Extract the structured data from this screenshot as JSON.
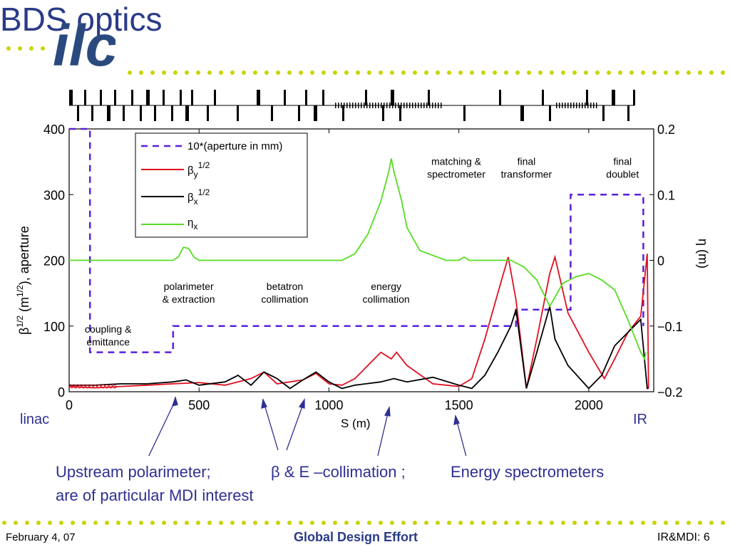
{
  "slide": {
    "title": "BDS optics",
    "logo_text": "ilc",
    "footer_left": "February 4, 07",
    "footer_center": "Global Design Effort",
    "footer_right": "IR&MDI: 6",
    "label_linac": "linac",
    "label_ir": "IR",
    "callout_1_line1": "Upstream polarimeter;",
    "callout_1_line2": "are of particular MDI interest",
    "callout_2": "β & E –collimation ;",
    "callout_3": "Energy spectrometers",
    "colors": {
      "title": "#2a3b87",
      "callout": "#2f3092",
      "dots": "#c8d400"
    }
  },
  "chart_data": {
    "type": "line",
    "xlabel": "S (m)",
    "ylabel": "β1/2 (m1/2), aperture",
    "y2label": "η (m)",
    "xlim": [
      0,
      2250
    ],
    "ylim": [
      0,
      400
    ],
    "y2lim": [
      -0.2,
      0.2
    ],
    "xticks": [
      "0",
      "500",
      "1000",
      "1500",
      "2000"
    ],
    "yticks": [
      "0",
      "100",
      "200",
      "300",
      "400"
    ],
    "y2ticks": [
      "−0.2",
      "−0.1",
      "0",
      "0.1",
      "0.2"
    ],
    "legend": {
      "placement": "top-left",
      "entries": [
        "10*(aperture in mm)",
        "βy1/2",
        "βx1/2",
        "ηx"
      ]
    },
    "annotations": [
      {
        "text": "coupling &\nemittance",
        "x": 150,
        "y": 90
      },
      {
        "text": "polarimeter\n& extraction",
        "x": 460,
        "y": 155
      },
      {
        "text": "betatron\ncollimation",
        "x": 830,
        "y": 155
      },
      {
        "text": "energy\ncollimation",
        "x": 1220,
        "y": 155
      },
      {
        "text": "matching &\nspectrometer",
        "x": 1490,
        "y": 345
      },
      {
        "text": "final\ntransformer",
        "x": 1760,
        "y": 345
      },
      {
        "text": "final\ndoublet",
        "x": 2130,
        "y": 345
      }
    ],
    "series": [
      {
        "name": "10*(aperture in mm)",
        "color": "#5a1fdc",
        "dash": true,
        "x": [
          0,
          80,
          80,
          400,
          400,
          1720,
          1720,
          1930,
          1930,
          2210,
          2210
        ],
        "y": [
          400,
          400,
          60,
          60,
          100,
          100,
          125,
          125,
          300,
          300,
          100
        ]
      },
      {
        "name": "βy1/2",
        "color": "#e01020",
        "x": [
          0,
          100,
          200,
          300,
          400,
          500,
          600,
          700,
          750,
          800,
          900,
          950,
          1000,
          1050,
          1100,
          1200,
          1240,
          1260,
          1300,
          1400,
          1500,
          1550,
          1600,
          1650,
          1690,
          1720,
          1760,
          1800,
          1850,
          1870,
          1920,
          2000,
          2060,
          2100,
          2150,
          2200,
          2225,
          2230
        ],
        "y": [
          8,
          6,
          8,
          10,
          12,
          14,
          10,
          20,
          30,
          12,
          18,
          28,
          12,
          10,
          20,
          60,
          50,
          60,
          40,
          12,
          8,
          20,
          80,
          150,
          205,
          140,
          5,
          80,
          180,
          205,
          120,
          60,
          20,
          50,
          90,
          115,
          210,
          5
        ]
      },
      {
        "name": "βx1/2",
        "color": "#000000",
        "x": [
          0,
          100,
          200,
          300,
          400,
          450,
          500,
          600,
          650,
          700,
          750,
          800,
          850,
          900,
          950,
          1000,
          1050,
          1100,
          1200,
          1250,
          1300,
          1400,
          1500,
          1550,
          1600,
          1650,
          1700,
          1720,
          1760,
          1800,
          1850,
          1870,
          1920,
          2000,
          2050,
          2100,
          2150,
          2200,
          2225,
          2230
        ],
        "y": [
          10,
          10,
          12,
          12,
          15,
          18,
          10,
          15,
          25,
          10,
          30,
          20,
          5,
          18,
          30,
          15,
          5,
          10,
          15,
          20,
          15,
          22,
          10,
          5,
          25,
          60,
          100,
          125,
          5,
          60,
          130,
          80,
          40,
          5,
          25,
          70,
          90,
          110,
          5,
          5
        ]
      },
      {
        "name": "ηx",
        "color": "#55dd22",
        "x": [
          0,
          400,
          420,
          440,
          460,
          480,
          500,
          1050,
          1100,
          1150,
          1200,
          1230,
          1240,
          1250,
          1280,
          1300,
          1350,
          1450,
          1500,
          1520,
          1540,
          1600,
          1700,
          1750,
          1800,
          1850,
          1900,
          1950,
          2000,
          2050,
          2100,
          2150,
          2200,
          2215,
          2220
        ],
        "y": [
          200,
          200,
          205,
          220,
          218,
          205,
          200,
          200,
          210,
          240,
          290,
          335,
          355,
          335,
          290,
          250,
          215,
          200,
          200,
          205,
          200,
          200,
          200,
          190,
          170,
          130,
          165,
          175,
          180,
          170,
          155,
          110,
          60,
          50,
          60
        ]
      }
    ]
  }
}
